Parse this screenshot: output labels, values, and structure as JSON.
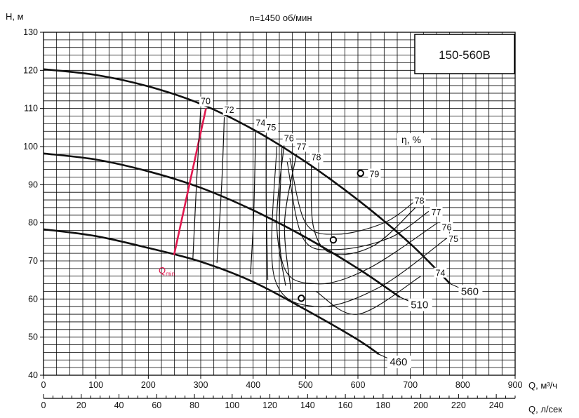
{
  "chart_data": {
    "type": "line",
    "title": "n=1450 об/мин",
    "model": "150-560B",
    "ylabel": "H, м",
    "xlabel": "Q, м³/ч",
    "xlabel2": "Q, л/сек",
    "efficiency_label": "η, %",
    "qmin_label": "Q",
    "qmin_sub": "min",
    "xlim": [
      0,
      900
    ],
    "ylim": [
      40,
      130
    ],
    "x_ticks": [
      0,
      100,
      200,
      300,
      400,
      500,
      600,
      700,
      800,
      900
    ],
    "y_ticks": [
      40,
      50,
      60,
      70,
      80,
      90,
      100,
      110,
      120,
      130
    ],
    "x2_ticks": [
      0,
      20,
      40,
      60,
      80,
      100,
      120,
      140,
      160,
      180,
      200,
      220,
      240
    ],
    "grid": true,
    "colors": {
      "qmin_line": "#e0194f",
      "curves": "#111111",
      "grid": "#000000"
    },
    "series": [
      {
        "name": "560",
        "points": [
          [
            0,
            120.3
          ],
          [
            100,
            118.8
          ],
          [
            200,
            115.8
          ],
          [
            300,
            111.2
          ],
          [
            400,
            104.5
          ],
          [
            500,
            96
          ],
          [
            600,
            86
          ],
          [
            700,
            74.5
          ],
          [
            776,
            64
          ]
        ]
      },
      {
        "name": "510",
        "points": [
          [
            0,
            98.2
          ],
          [
            100,
            96.6
          ],
          [
            200,
            93.5
          ],
          [
            300,
            89.2
          ],
          [
            400,
            83.3
          ],
          [
            500,
            76.2
          ],
          [
            600,
            68
          ],
          [
            680,
            60.5
          ]
        ]
      },
      {
        "name": "460",
        "points": [
          [
            0,
            78.3
          ],
          [
            100,
            76.5
          ],
          [
            200,
            73.4
          ],
          [
            300,
            69.8
          ],
          [
            400,
            64.5
          ],
          [
            500,
            57.2
          ],
          [
            600,
            49.3
          ],
          [
            640,
            45.5
          ]
        ]
      }
    ],
    "bep_points": [
      {
        "curve": "560",
        "x": 605,
        "y": 93
      },
      {
        "curve": "510",
        "x": 553,
        "y": 75.5
      },
      {
        "curve": "460",
        "x": 492,
        "y": 60.2
      }
    ],
    "qmin_line": [
      [
        249,
        71.5
      ],
      [
        310,
        110
      ]
    ],
    "efficiency_contours": [
      {
        "label": "70",
        "points": [
          [
            300,
            110
          ],
          [
            293,
            93
          ],
          [
            285,
            70.5
          ]
        ]
      },
      {
        "label": "72",
        "points": [
          [
            345,
            107.7
          ],
          [
            340,
            90
          ],
          [
            331,
            69.5
          ]
        ]
      },
      {
        "label": "74",
        "points": [
          [
            405,
            104.3
          ],
          [
            401,
            82
          ],
          [
            395,
            66.5
          ]
        ]
      },
      {
        "label": "75",
        "points": [
          [
            425,
            103.1
          ],
          [
            425,
            85
          ],
          [
            428,
            65
          ]
        ]
      },
      {
        "label": "76",
        "points": [
          [
            459,
            100.3
          ],
          [
            445,
            80
          ],
          [
            462,
            63.5
          ]
        ]
      },
      {
        "label": "77",
        "points": [
          [
            483,
            98.1
          ],
          [
            460,
            80
          ],
          [
            472,
            62.5
          ]
        ]
      },
      {
        "label": "78",
        "points": [
          [
            511,
            95.3
          ],
          [
            515,
            79
          ],
          [
            550,
            72
          ],
          [
            630,
            74
          ],
          [
            710,
            84
          ]
        ]
      }
    ],
    "efficiency_labels": [
      {
        "label": "79",
        "x": 622,
        "y": 92
      },
      {
        "label": "78",
        "x": 708,
        "y": 85
      },
      {
        "label": "77",
        "x": 740,
        "y": 82
      },
      {
        "label": "76",
        "x": 760,
        "y": 78
      },
      {
        "label": "75",
        "x": 773,
        "y": 75
      },
      {
        "label": "74",
        "x": 748,
        "y": 66
      }
    ],
    "annotations": [
      "η, %",
      "Qmin"
    ]
  }
}
